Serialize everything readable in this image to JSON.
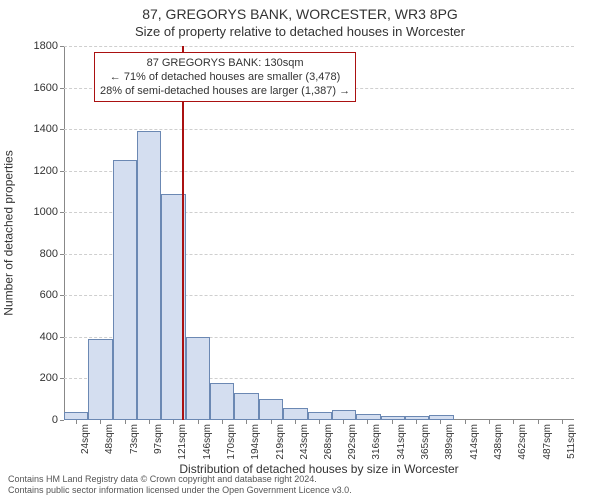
{
  "title_line1": "87, GREGORYS BANK, WORCESTER, WR3 8PG",
  "title_line2": "Size of property relative to detached houses in Worcester",
  "chart": {
    "type": "histogram",
    "ylabel": "Number of detached properties",
    "xlabel": "Distribution of detached houses by size in Worcester",
    "xlim": [
      12,
      523
    ],
    "ylim": [
      0,
      1800
    ],
    "ytick_step": 200,
    "yticks": [
      0,
      200,
      400,
      600,
      800,
      1000,
      1200,
      1400,
      1600,
      1800
    ],
    "xtick_labels": [
      "24sqm",
      "48sqm",
      "73sqm",
      "97sqm",
      "121sqm",
      "146sqm",
      "170sqm",
      "194sqm",
      "219sqm",
      "243sqm",
      "268sqm",
      "292sqm",
      "316sqm",
      "341sqm",
      "365sqm",
      "389sqm",
      "414sqm",
      "438sqm",
      "462sqm",
      "487sqm",
      "511sqm"
    ],
    "xtick_positions": [
      24,
      48,
      73,
      97,
      121,
      146,
      170,
      194,
      219,
      243,
      268,
      292,
      316,
      341,
      365,
      389,
      414,
      438,
      462,
      487,
      511
    ],
    "bin_width": 24.4,
    "bin_edges": [
      12,
      36.4,
      60.8,
      85.2,
      109.6,
      134,
      158.4,
      182.8,
      207.2,
      231.6,
      256,
      280.4,
      304.8,
      329.2,
      353.6,
      378,
      402.4,
      426.8,
      451.2,
      475.6,
      500,
      524.4
    ],
    "counts": [
      40,
      390,
      1250,
      1390,
      1090,
      400,
      180,
      130,
      100,
      60,
      40,
      50,
      30,
      20,
      20,
      25,
      0,
      0,
      0,
      0,
      0
    ],
    "bar_fill": "#d4def0",
    "bar_stroke": "#6b88b3",
    "grid_color": "#cfcfcf",
    "axis_color": "#888888",
    "background_color": "#ffffff",
    "label_fontsize": 12,
    "tick_fontsize": 11
  },
  "marker": {
    "x": 130,
    "color": "#aa1111"
  },
  "annotation": {
    "line1": "87 GREGORYS BANK: 130sqm",
    "line2": "← 71% of detached houses are smaller (3,478)",
    "line3": "28% of semi-detached houses are larger (1,387) →",
    "border_color": "#aa1111",
    "fontsize": 11
  },
  "footer": {
    "line1": "Contains HM Land Registry data © Crown copyright and database right 2024.",
    "line2": "Contains public sector information licensed under the Open Government Licence v3.0."
  }
}
